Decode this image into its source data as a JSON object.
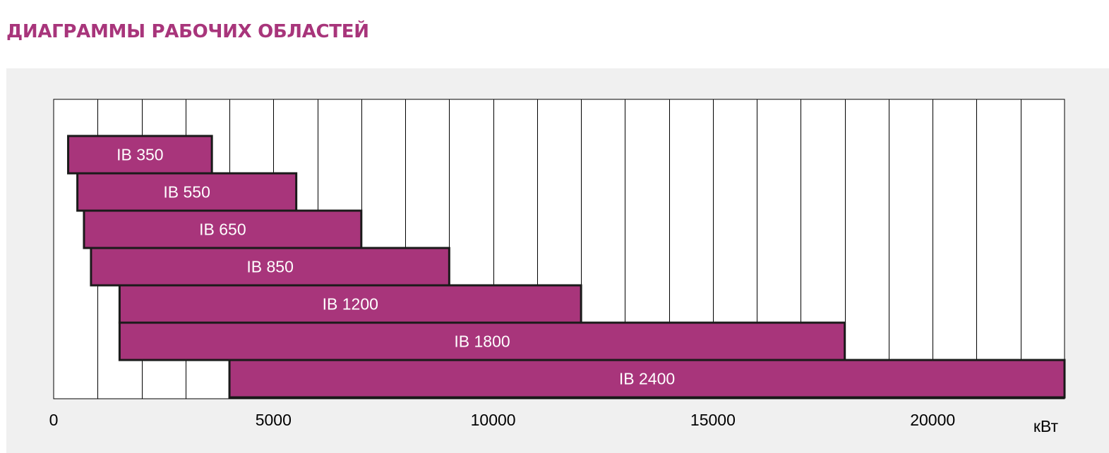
{
  "header": {
    "title": "ДИАГРАММЫ РАБОЧИХ ОБЛАСТЕЙ"
  },
  "colors": {
    "accent": "#a8357b",
    "bar_fill": "#a8357b",
    "bar_border": "#1a1a1a",
    "panel": "#f0f0f0"
  },
  "chart_data": {
    "type": "bar",
    "orientation": "horizontal-range",
    "title": "",
    "xlabel": "кВт",
    "ylabel": "",
    "xlim": [
      0,
      23000
    ],
    "xticks": [
      0,
      5000,
      10000,
      15000,
      20000
    ],
    "xtick_labels": [
      "0",
      "5000",
      "10000",
      "15000",
      "20000"
    ],
    "grid_step": 1000,
    "grid": true,
    "series": [
      {
        "name": "IB 350",
        "start": 330,
        "end": 3600
      },
      {
        "name": "IB 550",
        "start": 540,
        "end": 5520
      },
      {
        "name": "IB 650",
        "start": 690,
        "end": 7000
      },
      {
        "name": "IB 850",
        "start": 850,
        "end": 9000
      },
      {
        "name": "IB 1200",
        "start": 1500,
        "end": 12000
      },
      {
        "name": "IB 1800",
        "start": 1500,
        "end": 18000
      },
      {
        "name": "IB 2400",
        "start": 4000,
        "end": 23000
      }
    ]
  }
}
